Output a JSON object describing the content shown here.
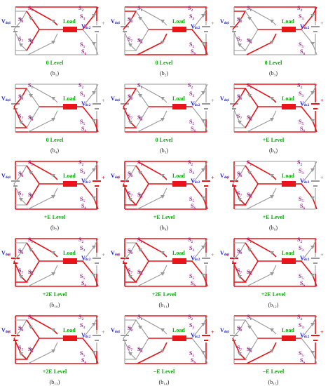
{
  "labels": {
    "vdc1": "V",
    "vdc1_sub": "dc1",
    "vdc2": "V",
    "vdc2_sub": "dc2",
    "load": "Load",
    "switches": [
      "S1",
      "S2",
      "S3",
      "S4",
      "S5",
      "S6",
      "S7",
      "S8"
    ]
  },
  "colors": {
    "active": "#e8141a",
    "idle": "#999999",
    "blue": "#1a1ad6",
    "magenta": "#b5119b",
    "green": "#11a811",
    "load": "#e8141a"
  },
  "panels": [
    {
      "level": "0 Level",
      "caption": "(b₁)",
      "active": [
        "top",
        "s1",
        "s3",
        "load",
        "botL"
      ],
      "srcL": false,
      "srcR": false
    },
    {
      "level": "0 Level",
      "caption": "(b₂)",
      "active": [
        "top",
        "s8",
        "s4",
        "load",
        "s6",
        "bot"
      ],
      "srcL": false,
      "srcR": false
    },
    {
      "level": "0 Level",
      "caption": "(b₃)",
      "active": [
        "top",
        "s8",
        "s4",
        "load",
        "s3",
        "botL",
        "topL"
      ],
      "srcL": false,
      "srcR": false
    },
    {
      "level": "0 Level",
      "caption": "(b₄)",
      "active": [
        "s8",
        "s7",
        "load",
        "s6",
        "bot"
      ],
      "srcL": false,
      "srcR": false
    },
    {
      "level": "0 Level",
      "caption": "(b₅)",
      "active": [
        "s7",
        "s8",
        "load",
        "s5",
        "bot"
      ],
      "srcL": false,
      "srcR": false
    },
    {
      "level": "+E Level",
      "caption": "(b₆)",
      "active": [
        "top",
        "s1",
        "s8",
        "load",
        "s6",
        "bot",
        "right"
      ],
      "srcL": false,
      "srcR": true
    },
    {
      "level": "+E Level",
      "caption": "(b₇)",
      "active": [
        "top",
        "s1",
        "load",
        "s6",
        "bot",
        "right",
        "left"
      ],
      "srcL": false,
      "srcR": true
    },
    {
      "level": "+E Level",
      "caption": "(b₈)",
      "active": [
        "top",
        "s1",
        "s7",
        "load",
        "s6",
        "bot",
        "right",
        "left"
      ],
      "srcL": true,
      "srcR": true
    },
    {
      "level": "+E Level",
      "caption": "(b₉)",
      "active": [
        "s1",
        "s7",
        "load",
        "s6",
        "left"
      ],
      "srcL": true,
      "srcR": false
    },
    {
      "level": "+2E Level",
      "caption": "(b₁₀)",
      "active": [
        "top",
        "s1",
        "s7",
        "load",
        "s6",
        "bot",
        "left"
      ],
      "srcL": true,
      "srcR": false
    },
    {
      "level": "+2E Level",
      "caption": "(b₁₁)",
      "active": [
        "top",
        "s1",
        "s7",
        "load",
        "s6",
        "bot",
        "left"
      ],
      "srcL": true,
      "srcR": false
    },
    {
      "level": "+2E Level",
      "caption": "(b₁₂)",
      "active": [
        "top",
        "s1",
        "s7",
        "load",
        "s6",
        "bot",
        "left"
      ],
      "srcL": true,
      "srcR": false
    },
    {
      "level": "+2E Level",
      "caption": "(b₁₃)",
      "active": [
        "top",
        "s1",
        "s7",
        "load",
        "s6",
        "bot",
        "left"
      ],
      "srcL": true,
      "srcR": false
    },
    {
      "level": "−E Level",
      "caption": "(b₁₄)",
      "active": [
        "top",
        "s2",
        "load",
        "s4",
        "bot",
        "right"
      ],
      "srcL": false,
      "srcR": true
    },
    {
      "level": "−E Level",
      "caption": "(b₁₅)",
      "active": [
        "top",
        "s2",
        "s7",
        "load",
        "s4",
        "bot",
        "right"
      ],
      "srcL": false,
      "srcR": true
    }
  ]
}
